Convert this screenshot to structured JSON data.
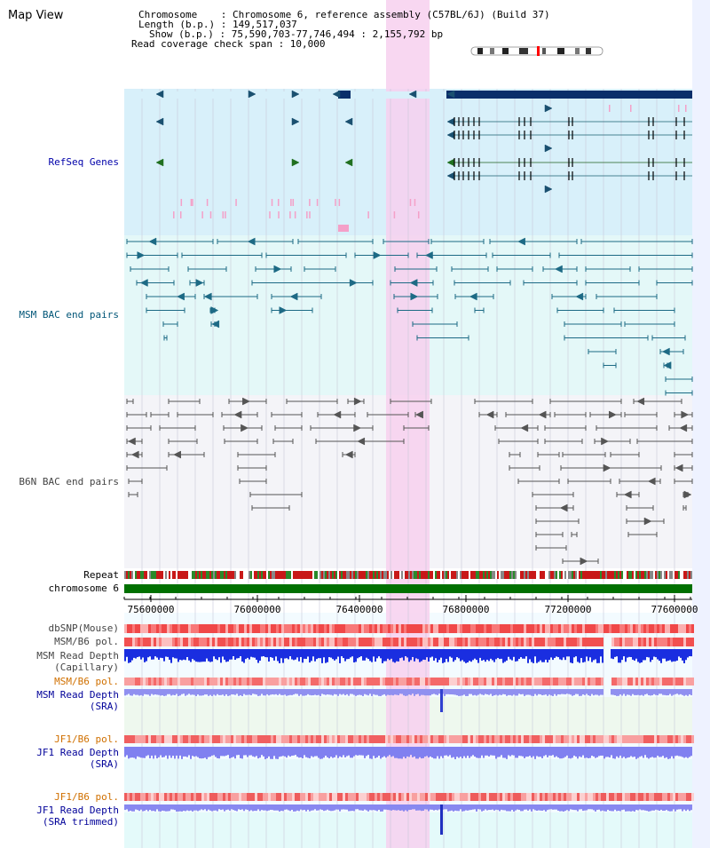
{
  "page": {
    "title": "Map View"
  },
  "info": {
    "line1": "Chromosome    : Chromosome 6, reference assembly (C57BL/6J) (Build 37)",
    "line2": "Length (b.p.) : 149,517,037",
    "line3": "Show (b.p.) : 75,590,703-77,746,494 : 2,155,792 bp",
    "line4": "Read coverage check span : 10,000"
  },
  "tracks": {
    "refseq": "RefSeq Genes",
    "msm_bac": "MSM BAC end pairs",
    "b6n_bac": "B6N BAC end pairs",
    "repeat": "Repeat",
    "chrom": "chromosome 6",
    "dbsnp": "dbSNP(Mouse)",
    "msm_pol": "MSM/B6 pol.",
    "msm_depth_cap_1": "MSM Read Depth",
    "msm_depth_cap_2": "(Capillary)",
    "msm_pol2": "MSM/B6 pol.",
    "msm_depth_sra_1": "MSM Read Depth",
    "msm_depth_sra_2": "(SRA)",
    "jf1_pol": "JF1/B6 pol.",
    "jf1_depth_1": "JF1 Read Depth",
    "jf1_depth_2": "(SRA)",
    "jf1_pol2": "JF1/B6 pol.",
    "jf1_trim_1": "JF1 Read Depth",
    "jf1_trim_2": "(SRA trimmed)"
  },
  "axis": {
    "ticks": [
      "75600000",
      "76000000",
      "76400000",
      "76800000",
      "77200000",
      "77600000"
    ]
  },
  "colors": {
    "refseq_bg": "#d8f0fa",
    "msm_bg": "#e6fafa",
    "b6n_bg": "#f2f2f2",
    "highlight": "#f7d0ef",
    "chrom": "#007000",
    "gene": "#003070"
  }
}
